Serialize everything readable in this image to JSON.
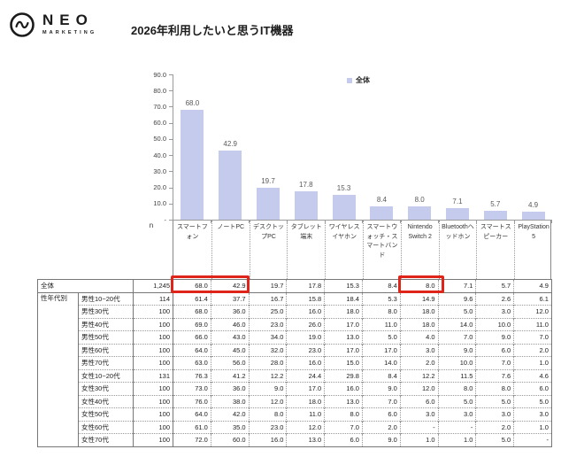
{
  "logo": {
    "name": "NEO",
    "sub": "MARKETING"
  },
  "title": "2026年利用したいと思うIT機器",
  "chart_data": {
    "type": "bar",
    "title": "2026年利用したいと思うIT機器",
    "legend": "全体",
    "legend_position": "top-right",
    "categories": [
      "スマートフォン",
      "ノートPC",
      "デスクトップPC",
      "タブレット端末",
      "ワイヤレスイヤホン",
      "スマートウォッチ・スマートバンド",
      "Nintendo Switch 2",
      "Bluetoothヘッドホン",
      "スマートスピーカー",
      "PlayStation 5"
    ],
    "values": [
      68.0,
      42.9,
      19.7,
      17.8,
      15.3,
      8.4,
      8.0,
      7.1,
      5.7,
      4.9
    ],
    "ylim": [
      0,
      90
    ],
    "ytick_labels": [
      "90.0",
      "80.0",
      "70.0",
      "60.0",
      "50.0",
      "40.0",
      "30.0",
      "20.0",
      "10.0",
      "-"
    ],
    "grid": false,
    "bar_color": "#c5cbec",
    "data_label_color": "#595959"
  },
  "table": {
    "n_header": "n",
    "total_label": "全体",
    "group_header": "性年代別",
    "columns": [
      "スマートフォン",
      "ノートPC",
      "デスクトップPC",
      "タブレット端末",
      "ワイヤレスイヤホン",
      "スマートウォッチ・スマートバンド",
      "Nintendo Switch 2",
      "Bluetoothヘッドホン",
      "スマートスピーカー",
      "PlayStation 5"
    ],
    "total_row": {
      "label": "全体",
      "n": "1,245",
      "values": [
        "68.0",
        "42.9",
        "19.7",
        "17.8",
        "15.3",
        "8.4",
        "8.0",
        "7.1",
        "5.7",
        "4.9"
      ]
    },
    "segment_rows": [
      {
        "label": "男性10−20代",
        "n": "114",
        "values": [
          "61.4",
          "37.7",
          "16.7",
          "15.8",
          "18.4",
          "5.3",
          "14.9",
          "9.6",
          "2.6",
          "6.1"
        ]
      },
      {
        "label": "男性30代",
        "n": "100",
        "values": [
          "68.0",
          "36.0",
          "25.0",
          "16.0",
          "18.0",
          "8.0",
          "18.0",
          "5.0",
          "3.0",
          "12.0"
        ]
      },
      {
        "label": "男性40代",
        "n": "100",
        "values": [
          "69.0",
          "46.0",
          "23.0",
          "26.0",
          "17.0",
          "11.0",
          "18.0",
          "14.0",
          "10.0",
          "11.0"
        ]
      },
      {
        "label": "男性50代",
        "n": "100",
        "values": [
          "66.0",
          "43.0",
          "34.0",
          "19.0",
          "13.0",
          "5.0",
          "4.0",
          "7.0",
          "9.0",
          "7.0"
        ]
      },
      {
        "label": "男性60代",
        "n": "100",
        "values": [
          "64.0",
          "45.0",
          "32.0",
          "23.0",
          "17.0",
          "17.0",
          "3.0",
          "9.0",
          "6.0",
          "2.0"
        ]
      },
      {
        "label": "男性70代",
        "n": "100",
        "values": [
          "63.0",
          "56.0",
          "28.0",
          "16.0",
          "15.0",
          "14.0",
          "2.0",
          "10.0",
          "7.0",
          "1.0"
        ]
      },
      {
        "label": "女性10−20代",
        "n": "131",
        "values": [
          "76.3",
          "41.2",
          "12.2",
          "24.4",
          "29.8",
          "8.4",
          "12.2",
          "11.5",
          "7.6",
          "4.6"
        ]
      },
      {
        "label": "女性30代",
        "n": "100",
        "values": [
          "73.0",
          "36.0",
          "9.0",
          "17.0",
          "16.0",
          "9.0",
          "12.0",
          "8.0",
          "8.0",
          "6.0"
        ]
      },
      {
        "label": "女性40代",
        "n": "100",
        "values": [
          "76.0",
          "38.0",
          "12.0",
          "18.0",
          "13.0",
          "7.0",
          "6.0",
          "5.0",
          "5.0",
          "5.0"
        ]
      },
      {
        "label": "女性50代",
        "n": "100",
        "values": [
          "64.0",
          "42.0",
          "8.0",
          "11.0",
          "8.0",
          "6.0",
          "3.0",
          "3.0",
          "3.0",
          "3.0"
        ]
      },
      {
        "label": "女性60代",
        "n": "100",
        "values": [
          "61.0",
          "35.0",
          "23.0",
          "12.0",
          "7.0",
          "2.0",
          "-",
          "-",
          "2.0",
          "1.0"
        ]
      },
      {
        "label": "女性70代",
        "n": "100",
        "values": [
          "72.0",
          "60.0",
          "16.0",
          "13.0",
          "6.0",
          "9.0",
          "1.0",
          "1.0",
          "5.0",
          "-"
        ]
      }
    ],
    "highlights": [
      {
        "row": "全体",
        "columns": [
          "スマートフォン",
          "ノートPC"
        ],
        "color": "#df241a"
      },
      {
        "row": "全体",
        "columns": [
          "Nintendo Switch 2"
        ],
        "color": "#df241a"
      }
    ]
  }
}
